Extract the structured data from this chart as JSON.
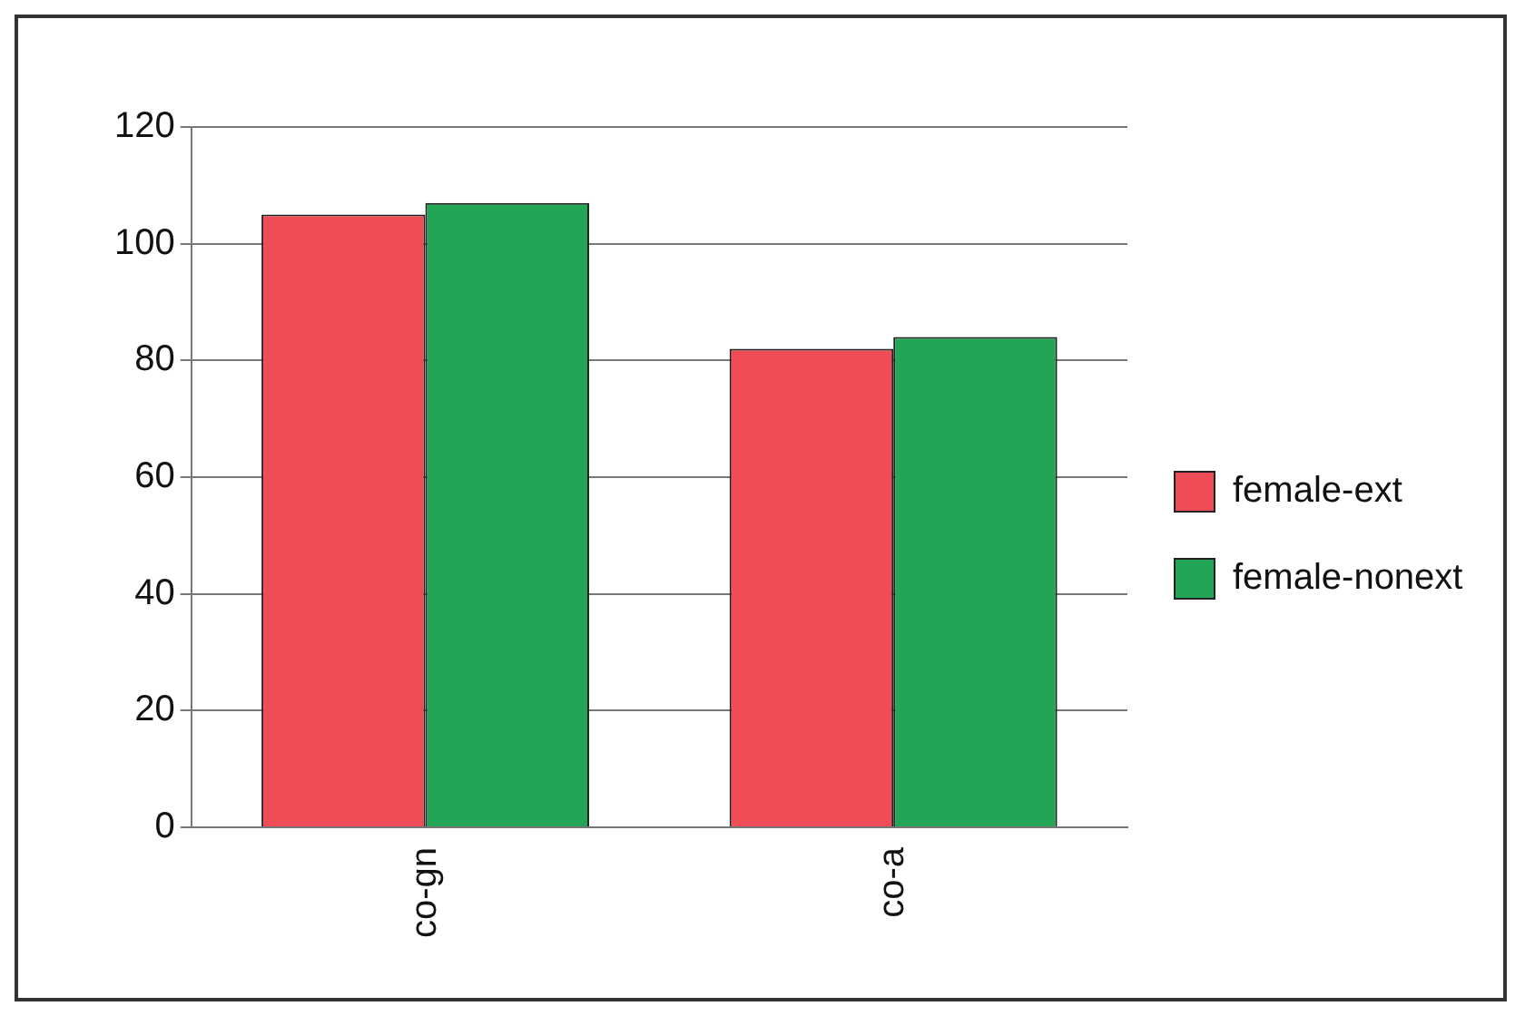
{
  "chart_data": {
    "type": "bar",
    "categories": [
      "co-gn",
      "co-a"
    ],
    "series": [
      {
        "name": "female-ext",
        "color": "#f04c55",
        "values": [
          105,
          82
        ]
      },
      {
        "name": "female-nonext",
        "color": "#22a655",
        "values": [
          107,
          84
        ]
      }
    ],
    "ylim": [
      0,
      120
    ],
    "yticks": [
      0,
      20,
      40,
      60,
      80,
      100,
      120
    ],
    "grid": "y",
    "legend": "right"
  }
}
